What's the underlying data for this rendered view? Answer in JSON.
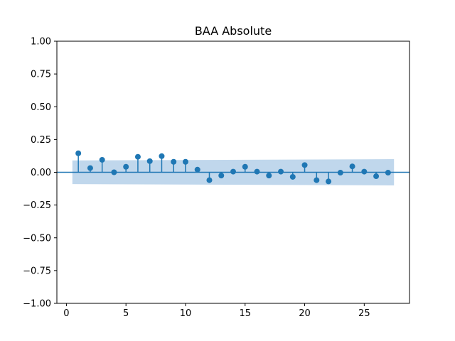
{
  "chart_data": {
    "type": "stem",
    "title": "BAA Absolute",
    "xlabel": "",
    "ylabel": "",
    "xlim": [
      -0.8,
      28.8
    ],
    "ylim": [
      -1.0,
      1.0
    ],
    "x_ticks": [
      0,
      5,
      10,
      15,
      20,
      25
    ],
    "x_tick_labels": [
      "0",
      "5",
      "10",
      "15",
      "20",
      "25"
    ],
    "y_ticks": [
      1.0,
      0.75,
      0.5,
      0.25,
      0.0,
      -0.25,
      -0.5,
      -0.75,
      -1.0
    ],
    "y_tick_labels": [
      "1.00",
      "0.75",
      "0.50",
      "0.25",
      "0.00",
      "−0.25",
      "−0.50",
      "−0.75",
      "−1.00"
    ],
    "grid": false,
    "series": [
      {
        "lags": [
          1,
          2,
          3,
          4,
          5,
          6,
          7,
          8,
          9,
          10,
          11,
          12,
          13,
          14,
          15,
          16,
          17,
          18,
          19,
          20,
          21,
          22,
          23,
          24,
          25,
          26,
          27
        ],
        "values": [
          0.145,
          0.032,
          0.095,
          0.0,
          0.042,
          0.118,
          0.085,
          0.123,
          0.08,
          0.08,
          0.02,
          -0.06,
          -0.025,
          0.005,
          0.042,
          0.005,
          -0.025,
          0.005,
          -0.035,
          0.055,
          -0.06,
          -0.07,
          -0.003,
          0.045,
          0.005,
          -0.03,
          -0.003
        ]
      }
    ],
    "confidence_band": {
      "x": [
        0.5,
        27.5
      ],
      "upper": [
        0.09,
        0.1
      ],
      "lower": [
        -0.09,
        -0.1
      ]
    },
    "colors": {
      "marker": "#1f77b4",
      "band": "#b9d3ea",
      "axis": "#000000"
    }
  }
}
